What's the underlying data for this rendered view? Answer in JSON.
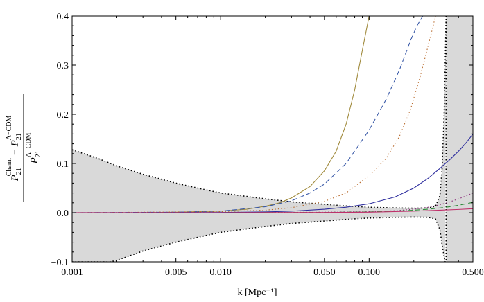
{
  "chart_data": {
    "type": "line",
    "xlabel": "k [Mpc⁻¹]",
    "ylabel": {
      "numerator_a": "P",
      "numerator_a_sub": "21",
      "numerator_a_sup": "Cham.",
      "numerator_minus": "−",
      "numerator_b": "P",
      "numerator_b_sub": "21",
      "numerator_b_sup": "Λ−CDM",
      "denominator": "P",
      "denominator_sub": "21",
      "denominator_sup": "Λ−CDM"
    },
    "x_scale": "log",
    "xlim": [
      0.001,
      0.5
    ],
    "ylim": [
      -0.1,
      0.4
    ],
    "x_ticks": [
      0.001,
      0.005,
      0.01,
      0.05,
      0.1,
      0.5
    ],
    "x_tick_labels": [
      "0.001",
      "0.005",
      "0.010",
      "0.050",
      "0.100",
      "0.500"
    ],
    "y_ticks": [
      -0.1,
      0.0,
      0.1,
      0.2,
      0.3,
      0.4
    ],
    "y_tick_labels": [
      "−0.1",
      "0.0",
      "0.1",
      "0.2",
      "0.3",
      "0.4"
    ],
    "grid": false,
    "uncertainty_band": {
      "fill_color": "#d9d9d9",
      "edge_style": "dotted",
      "edge_color": "#000000",
      "upper": [
        [
          0.001,
          0.128
        ],
        [
          0.0015,
          0.11
        ],
        [
          0.002,
          0.095
        ],
        [
          0.003,
          0.078
        ],
        [
          0.005,
          0.06
        ],
        [
          0.0075,
          0.048
        ],
        [
          0.01,
          0.04
        ],
        [
          0.015,
          0.033
        ],
        [
          0.02,
          0.028
        ],
        [
          0.03,
          0.022
        ],
        [
          0.05,
          0.017
        ],
        [
          0.075,
          0.013
        ],
        [
          0.1,
          0.011
        ],
        [
          0.15,
          0.0095
        ],
        [
          0.2,
          0.009
        ],
        [
          0.25,
          0.0095
        ],
        [
          0.28,
          0.013
        ],
        [
          0.3,
          0.035
        ],
        [
          0.31,
          0.09
        ],
        [
          0.32,
          0.2
        ],
        [
          0.325,
          0.3
        ],
        [
          0.33,
          0.4
        ]
      ],
      "lower": [
        [
          0.001,
          -0.1
        ],
        [
          0.0015,
          -0.1
        ],
        [
          0.0018,
          -0.1
        ],
        [
          0.002,
          -0.097
        ],
        [
          0.003,
          -0.078
        ],
        [
          0.005,
          -0.06
        ],
        [
          0.0075,
          -0.048
        ],
        [
          0.01,
          -0.04
        ],
        [
          0.015,
          -0.033
        ],
        [
          0.02,
          -0.028
        ],
        [
          0.03,
          -0.022
        ],
        [
          0.05,
          -0.017
        ],
        [
          0.075,
          -0.013
        ],
        [
          0.1,
          -0.011
        ],
        [
          0.15,
          -0.0095
        ],
        [
          0.2,
          -0.009
        ],
        [
          0.25,
          -0.0095
        ],
        [
          0.28,
          -0.013
        ],
        [
          0.3,
          -0.035
        ],
        [
          0.31,
          -0.065
        ],
        [
          0.32,
          -0.09
        ],
        [
          0.325,
          -0.1
        ]
      ],
      "right_region_x_start": 0.33
    },
    "series": [
      {
        "color": "#a08a3c",
        "style": "solid",
        "x": [
          0.001,
          0.003,
          0.005,
          0.01,
          0.015,
          0.02,
          0.025,
          0.03,
          0.04,
          0.05,
          0.06,
          0.07,
          0.08,
          0.09,
          0.1
        ],
        "y": [
          0.0,
          0.0,
          0.001,
          0.003,
          0.007,
          0.013,
          0.02,
          0.03,
          0.053,
          0.085,
          0.125,
          0.18,
          0.25,
          0.33,
          0.4
        ]
      },
      {
        "color": "#3a5aa8",
        "style": "dashed",
        "x": [
          0.001,
          0.005,
          0.01,
          0.02,
          0.03,
          0.04,
          0.05,
          0.07,
          0.1,
          0.13,
          0.16,
          0.19,
          0.21,
          0.23
        ],
        "y": [
          0.0,
          0.001,
          0.003,
          0.012,
          0.024,
          0.04,
          0.058,
          0.1,
          0.168,
          0.23,
          0.29,
          0.35,
          0.38,
          0.4
        ]
      },
      {
        "color": "#b86a2c",
        "style": "dotted",
        "x": [
          0.001,
          0.01,
          0.02,
          0.03,
          0.05,
          0.07,
          0.1,
          0.13,
          0.16,
          0.19,
          0.22,
          0.25,
          0.27,
          0.28
        ],
        "y": [
          0.0,
          0.002,
          0.005,
          0.01,
          0.023,
          0.04,
          0.075,
          0.11,
          0.155,
          0.21,
          0.275,
          0.34,
          0.38,
          0.4
        ]
      },
      {
        "color": "#2d2d9e",
        "style": "solid",
        "x": [
          0.001,
          0.01,
          0.02,
          0.03,
          0.05,
          0.07,
          0.1,
          0.15,
          0.2,
          0.25,
          0.3,
          0.35,
          0.4,
          0.45,
          0.5
        ],
        "y": [
          0.0,
          0.0005,
          0.0015,
          0.003,
          0.007,
          0.011,
          0.018,
          0.032,
          0.05,
          0.07,
          0.09,
          0.108,
          0.125,
          0.142,
          0.16
        ]
      },
      {
        "color": "#8a2f7a",
        "style": "dotted",
        "x": [
          0.001,
          0.01,
          0.05,
          0.1,
          0.15,
          0.2,
          0.25,
          0.3,
          0.35,
          0.4,
          0.45,
          0.5
        ],
        "y": [
          0.0,
          0.0,
          0.001,
          0.002,
          0.004,
          0.007,
          0.011,
          0.016,
          0.022,
          0.028,
          0.034,
          0.04
        ]
      },
      {
        "color": "#2f8a3a",
        "style": "dashed",
        "x": [
          0.001,
          0.01,
          0.05,
          0.1,
          0.15,
          0.2,
          0.25,
          0.3,
          0.35,
          0.4,
          0.45,
          0.5
        ],
        "y": [
          0.0,
          0.0,
          0.0005,
          0.0015,
          0.003,
          0.005,
          0.007,
          0.0095,
          0.012,
          0.015,
          0.018,
          0.021
        ]
      },
      {
        "color": "#c0306a",
        "style": "solid",
        "x": [
          0.001,
          0.01,
          0.05,
          0.1,
          0.2,
          0.3,
          0.4,
          0.5
        ],
        "y": [
          0.0,
          0.0,
          0.0005,
          0.001,
          0.003,
          0.005,
          0.0065,
          0.008
        ]
      }
    ]
  }
}
